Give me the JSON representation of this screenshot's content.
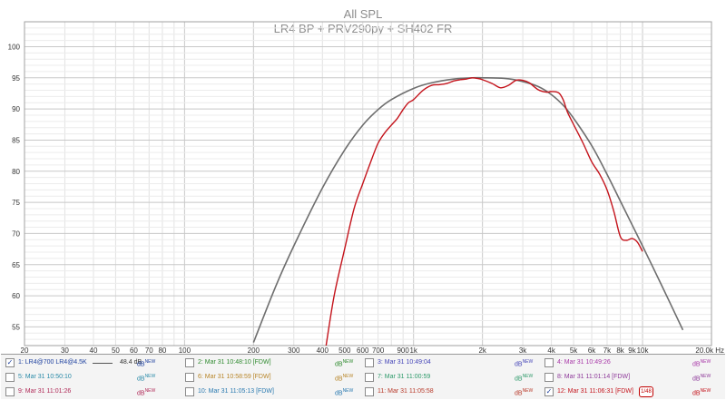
{
  "chart_data": {
    "type": "line",
    "title": "All SPL",
    "subtitle": "LR4 BP + PRV290py + SH402  FR",
    "xscale": "log",
    "xlim": [
      20,
      20000
    ],
    "ylim": [
      52,
      104
    ],
    "grid": true,
    "y_ticks": [
      55,
      60,
      65,
      70,
      75,
      80,
      85,
      90,
      95,
      100
    ],
    "x_ticks": [
      {
        "value": 20,
        "label": "20"
      },
      {
        "value": 30,
        "label": "30"
      },
      {
        "value": 40,
        "label": "40"
      },
      {
        "value": 50,
        "label": "50"
      },
      {
        "value": 60,
        "label": "60"
      },
      {
        "value": 70,
        "label": "70"
      },
      {
        "value": 80,
        "label": "80"
      },
      {
        "value": 100,
        "label": "100"
      },
      {
        "value": 200,
        "label": "200"
      },
      {
        "value": 300,
        "label": "300"
      },
      {
        "value": 400,
        "label": "400"
      },
      {
        "value": 500,
        "label": "500"
      },
      {
        "value": 600,
        "label": "600"
      },
      {
        "value": 700,
        "label": "700"
      },
      {
        "value": 900,
        "label": "900"
      },
      {
        "value": 1000,
        "label": "1k"
      },
      {
        "value": 2000,
        "label": "2k"
      },
      {
        "value": 3000,
        "label": "3k"
      },
      {
        "value": 4000,
        "label": "4k"
      },
      {
        "value": 5000,
        "label": "5k"
      },
      {
        "value": 6000,
        "label": "6k"
      },
      {
        "value": 7000,
        "label": "7k"
      },
      {
        "value": 8000,
        "label": "8k"
      },
      {
        "value": 9000,
        "label": "9k"
      },
      {
        "value": 10000,
        "label": "10k"
      },
      {
        "value": 20000,
        "label": "20.0k Hz"
      }
    ],
    "series": [
      {
        "name": "1: LR4@700 LR4@4.5K",
        "color": "#6e6e6e",
        "x": [
          200,
          250,
          300,
          400,
          500,
          600,
          700,
          800,
          1000,
          1200,
          1500,
          1800,
          2000,
          2500,
          3000,
          3500,
          4000,
          4500,
          5000,
          6000,
          7000,
          8000,
          10000,
          12000,
          15000
        ],
        "y": [
          52.5,
          61.5,
          68.0,
          77.3,
          83.4,
          87.4,
          89.9,
          91.5,
          93.3,
          94.2,
          94.8,
          95.0,
          95.0,
          94.9,
          94.4,
          93.6,
          92.3,
          90.6,
          88.5,
          84.1,
          79.5,
          75.2,
          68.0,
          62.0,
          54.5
        ]
      },
      {
        "name": "12: Mar 31 11:06:31 [FDW]",
        "color": "#c4141c",
        "x": [
          415,
          450,
          500,
          550,
          600,
          650,
          700,
          750,
          800,
          850,
          900,
          950,
          1000,
          1100,
          1200,
          1300,
          1400,
          1500,
          1600,
          1700,
          1800,
          1900,
          2000,
          2200,
          2400,
          2600,
          2800,
          3000,
          3200,
          3500,
          3800,
          4000,
          4300,
          4500,
          4700,
          5000,
          5500,
          6000,
          6500,
          7000,
          7500,
          8000,
          8500,
          9000,
          9500,
          10000
        ],
        "y": [
          52.0,
          60.0,
          67.5,
          74.0,
          78.0,
          81.5,
          84.5,
          86.2,
          87.4,
          88.5,
          89.9,
          91.0,
          91.5,
          93.0,
          93.8,
          93.9,
          94.1,
          94.5,
          94.7,
          94.8,
          95.0,
          94.9,
          94.7,
          94.1,
          93.4,
          93.8,
          94.6,
          94.6,
          94.2,
          93.1,
          92.7,
          92.8,
          92.6,
          91.5,
          89.5,
          87.5,
          84.5,
          81.5,
          79.5,
          77.0,
          73.5,
          69.5,
          68.9,
          69.2,
          68.6,
          67.1
        ]
      }
    ]
  },
  "legend": {
    "items": [
      {
        "label": "1: LR4@700 LR4@4.5K",
        "checked": true,
        "color": "#1c3f9e",
        "offset": "48.4 dB",
        "db": "dB",
        "new": "NEW"
      },
      {
        "label": "2: Mar 31 10:48:10 [FDW]",
        "checked": false,
        "color": "#2f8a2f",
        "db": "dB",
        "new": "NEW"
      },
      {
        "label": "3: Mar 31 10:49:04",
        "checked": false,
        "color": "#4545b8",
        "db": "dB",
        "new": "NEW"
      },
      {
        "label": "4: Mar 31 10:49:26",
        "checked": false,
        "color": "#a838a8",
        "db": "dB",
        "new": "NEW"
      },
      {
        "label": "5: Mar 31 10:50:10",
        "checked": false,
        "color": "#2a8aa8",
        "db": "dB",
        "new": "NEW"
      },
      {
        "label": "6: Mar 31 10:58:59 [FDW]",
        "checked": false,
        "color": "#b8862a",
        "db": "dB",
        "new": "NEW"
      },
      {
        "label": "7: Mar 31 11:00:59",
        "checked": false,
        "color": "#2e9a6a",
        "db": "dB",
        "new": "NEW"
      },
      {
        "label": "8: Mar 31 11:01:14 [FDW]",
        "checked": false,
        "color": "#8e3a9a",
        "db": "dB",
        "new": "NEW"
      },
      {
        "label": "9: Mar 31 11:01:26",
        "checked": false,
        "color": "#b02a58",
        "db": "dB",
        "new": "NEW"
      },
      {
        "label": "10: Mar 31 11:05:13 [FDW]",
        "checked": false,
        "color": "#2a7ab0",
        "db": "dB",
        "new": "NEW"
      },
      {
        "label": "11: Mar 31 11:05:58",
        "checked": false,
        "color": "#b83a2a",
        "db": "dB",
        "new": "NEW"
      },
      {
        "label": "12: Mar 31 11:06:31 [FDW]",
        "checked": true,
        "color": "#c4141c",
        "db": "dB",
        "new": "NEW",
        "badge": "1/48"
      }
    ]
  }
}
